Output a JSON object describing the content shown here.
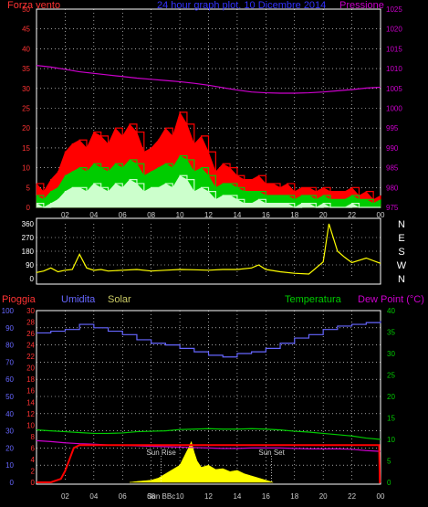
{
  "colors": {
    "wind_gust": "#ff0000",
    "wind_avg": "#00cc00",
    "wind_min": "#ccffcc",
    "pressure": "#cc00cc",
    "direction": "#ffff00",
    "rain": "#ff0000",
    "humidity": "#6666ff",
    "solar": "#ffff00",
    "temperature": "#00cc00",
    "dewpoint": "#cc00cc",
    "axis_left": "#ff3333",
    "axis_right": "#cc00cc",
    "grid": "#ffffff"
  },
  "chart_data": [
    {
      "type": "line",
      "title": "24 hour graph plot. 10 Dicembre 2014",
      "left_label": "Forza vento",
      "right_label": "Pressione",
      "x_ticks": [
        "02",
        "04",
        "06",
        "08",
        "10",
        "12",
        "14",
        "16",
        "18",
        "20",
        "22",
        "00"
      ],
      "y_left": {
        "range": [
          0,
          50
        ],
        "ticks": [
          "0",
          "5",
          "10",
          "15",
          "20",
          "25",
          "30",
          "35",
          "40",
          "45",
          "50"
        ]
      },
      "y_right": {
        "range": [
          975,
          1025
        ],
        "ticks": [
          "975",
          "980",
          "985",
          "990",
          "995",
          "1000",
          "1005",
          "1010",
          "1015",
          "1020",
          "1025"
        ]
      },
      "series": [
        {
          "key": "pressure",
          "axis": "right",
          "x": [
            0,
            1,
            2,
            3,
            4,
            5,
            6,
            7,
            8,
            9,
            10,
            11,
            12,
            13,
            14,
            15,
            16,
            17,
            18,
            19,
            20,
            21,
            22,
            23,
            24
          ],
          "y": [
            1010.8,
            1010.4,
            1009.8,
            1009.2,
            1008.8,
            1008.4,
            1008.0,
            1007.6,
            1007.3,
            1007.0,
            1006.7,
            1006.3,
            1005.8,
            1005.2,
            1004.6,
            1004.1,
            1003.9,
            1003.8,
            1003.8,
            1003.9,
            1004.1,
            1004.4,
            1004.7,
            1005.1,
            1005.3
          ]
        },
        {
          "key": "wind_gust",
          "axis": "left",
          "x": [
            0,
            0.5,
            1,
            1.5,
            2,
            2.5,
            3,
            3.5,
            4,
            4.5,
            5,
            5.5,
            6,
            6.5,
            7,
            7.5,
            8,
            8.5,
            9,
            9.5,
            10,
            10.5,
            11,
            11.5,
            12,
            12.5,
            13,
            13.5,
            14,
            14.5,
            15,
            15.5,
            16,
            16.5,
            17,
            17.5,
            18,
            18.5,
            19,
            19.5,
            20,
            20.5,
            21,
            21.5,
            22,
            22.5,
            23,
            23.5,
            24
          ],
          "y": [
            6,
            4,
            7,
            9,
            14,
            16,
            17,
            15,
            19,
            18,
            16,
            20,
            18,
            21,
            19,
            14,
            15,
            17,
            20,
            18,
            24,
            21,
            16,
            18,
            14,
            9,
            11,
            10,
            8,
            7,
            7,
            8,
            6,
            6,
            5,
            6,
            4,
            5,
            5,
            4,
            5,
            4,
            4,
            4,
            5,
            3,
            4,
            2,
            3
          ]
        },
        {
          "key": "wind_avg",
          "axis": "left",
          "x": [
            0,
            0.5,
            1,
            1.5,
            2,
            2.5,
            3,
            3.5,
            4,
            4.5,
            5,
            5.5,
            6,
            6.5,
            7,
            7.5,
            8,
            8.5,
            9,
            9.5,
            10,
            10.5,
            11,
            11.5,
            12,
            12.5,
            13,
            13.5,
            14,
            14.5,
            15,
            15.5,
            16,
            16.5,
            17,
            17.5,
            18,
            18.5,
            19,
            19.5,
            20,
            20.5,
            21,
            21.5,
            22,
            22.5,
            23,
            23.5,
            24
          ],
          "y": [
            3,
            2,
            4,
            5,
            8,
            9,
            10,
            9,
            11,
            10,
            9,
            11,
            10,
            12,
            11,
            8,
            9,
            10,
            11,
            10,
            13,
            12,
            9,
            10,
            8,
            5,
            6,
            6,
            5,
            4,
            4,
            4,
            3,
            3,
            3,
            3,
            2,
            3,
            3,
            2,
            3,
            2,
            2,
            2,
            3,
            2,
            2,
            1,
            2
          ]
        },
        {
          "key": "wind_min",
          "axis": "left",
          "x": [
            0,
            0.5,
            1,
            1.5,
            2,
            2.5,
            3,
            3.5,
            4,
            4.5,
            5,
            5.5,
            6,
            6.5,
            7,
            7.5,
            8,
            8.5,
            9,
            9.5,
            10,
            10.5,
            11,
            11.5,
            12,
            12.5,
            13,
            13.5,
            14,
            14.5,
            15,
            15.5,
            16,
            16.5,
            17,
            17.5,
            18,
            18.5,
            19,
            19.5,
            20,
            20.5,
            21,
            21.5,
            22,
            22.5,
            23,
            23.5,
            24
          ],
          "y": [
            1,
            0,
            1,
            2,
            4,
            5,
            5,
            4,
            6,
            5,
            4,
            6,
            5,
            7,
            6,
            4,
            5,
            5,
            6,
            5,
            8,
            7,
            4,
            5,
            4,
            2,
            3,
            3,
            2,
            1,
            1,
            2,
            1,
            1,
            1,
            1,
            0,
            1,
            1,
            0,
            1,
            0,
            0,
            0,
            1,
            0,
            0,
            0,
            0
          ]
        }
      ]
    },
    {
      "type": "line",
      "title": "",
      "y_left": {
        "range": [
          0,
          360
        ],
        "ticks": [
          "0",
          "90",
          "180",
          "270",
          "360"
        ]
      },
      "compass": [
        "N",
        "W",
        "S",
        "E",
        "N"
      ],
      "series": [
        {
          "key": "direction",
          "x": [
            0,
            0.5,
            1,
            1.5,
            2,
            2.5,
            3,
            3.5,
            4,
            4.5,
            5,
            6,
            7,
            8,
            9,
            10,
            11,
            12,
            13,
            14,
            15,
            15.5,
            16,
            17,
            18,
            19,
            20,
            20.4,
            21,
            21.5,
            22,
            23,
            24
          ],
          "y": [
            40,
            50,
            70,
            45,
            55,
            60,
            160,
            70,
            55,
            60,
            50,
            55,
            60,
            50,
            55,
            60,
            58,
            55,
            60,
            60,
            70,
            90,
            60,
            45,
            35,
            30,
            110,
            360,
            180,
            140,
            105,
            135,
            100
          ]
        }
      ]
    },
    {
      "type": "line",
      "title": "",
      "labels": [
        "Pioggia",
        "Umidita",
        "Solar",
        "Temperatura",
        "Dew Point (°C)"
      ],
      "x_ticks": [
        "02",
        "04",
        "06",
        "08",
        "10",
        "12",
        "14",
        "16",
        "18",
        "20",
        "22",
        "00"
      ],
      "annotations": [
        "Sun Rise",
        "Sun Set",
        "Sun BBc"
      ],
      "y_rain": {
        "range": [
          0,
          30
        ],
        "ticks": [
          "0",
          "2",
          "4",
          "6",
          "8",
          "10",
          "12",
          "14",
          "16",
          "18",
          "20",
          "22",
          "24",
          "26",
          "28",
          "30"
        ]
      },
      "y_hum": {
        "range": [
          0,
          100
        ],
        "ticks": [
          "0",
          "10",
          "20",
          "30",
          "40",
          "50",
          "60",
          "70",
          "80",
          "90",
          "100"
        ]
      },
      "y_temp": {
        "range": [
          0,
          40
        ],
        "ticks": [
          "0",
          "5",
          "10",
          "15",
          "20",
          "25",
          "30",
          "35",
          "40"
        ]
      },
      "series": [
        {
          "key": "humidity",
          "axis": "hum",
          "x": [
            0,
            1,
            2,
            3,
            4,
            5,
            6,
            7,
            8,
            9,
            10,
            11,
            12,
            13,
            14,
            15,
            16,
            17,
            18,
            19,
            20,
            21,
            22,
            23,
            24
          ],
          "y": [
            87,
            88,
            89,
            92,
            90,
            88,
            86,
            83,
            81,
            80,
            78,
            76,
            74,
            73,
            75,
            76,
            78,
            81,
            84,
            86,
            89,
            91,
            92,
            93,
            94
          ]
        },
        {
          "key": "temperature",
          "axis": "temp",
          "x": [
            0,
            1,
            2,
            3,
            4,
            5,
            6,
            7,
            8,
            9,
            10,
            11,
            12,
            13,
            14,
            15,
            16,
            17,
            18,
            19,
            20,
            21,
            22,
            23,
            24
          ],
          "y": [
            12.2,
            12.0,
            11.8,
            11.6,
            11.4,
            11.4,
            11.5,
            11.8,
            11.9,
            12.0,
            12.3,
            12.4,
            12.5,
            12.4,
            12.4,
            12.5,
            12.4,
            12.2,
            11.9,
            11.7,
            11.4,
            11.1,
            10.8,
            10.3,
            10.0
          ]
        },
        {
          "key": "dewpoint",
          "axis": "temp",
          "x": [
            0,
            1,
            2,
            3,
            4,
            5,
            6,
            7,
            8,
            9,
            10,
            11,
            12,
            13,
            14,
            15,
            16,
            17,
            18,
            19,
            20,
            21,
            22,
            23,
            24
          ],
          "y": [
            9.7,
            9.5,
            9.2,
            9.0,
            8.9,
            8.7,
            8.6,
            8.5,
            8.4,
            8.3,
            8.2,
            8.1,
            8.0,
            7.9,
            7.9,
            8.0,
            8.0,
            8.0,
            7.9,
            7.8,
            7.8,
            7.8,
            7.7,
            7.4,
            7.2
          ]
        },
        {
          "key": "rain",
          "axis": "rain",
          "x": [
            0,
            1,
            1.7,
            2,
            2.3,
            2.6,
            3,
            6,
            10,
            14,
            18,
            22,
            23.9,
            23.95,
            24
          ],
          "y": [
            0,
            0,
            0.6,
            2,
            4,
            6,
            6.5,
            6.5,
            6.5,
            6.5,
            6.5,
            6.5,
            6.5,
            0,
            0
          ]
        },
        {
          "key": "solar",
          "axis": "temp",
          "fill": true,
          "x": [
            6.5,
            7,
            8,
            8.5,
            9,
            9.5,
            10,
            10.3,
            10.6,
            10.8,
            11,
            11.2,
            11.5,
            12,
            12.5,
            13,
            13.5,
            14,
            14.5,
            15,
            15.5,
            16,
            16.5
          ],
          "y": [
            0,
            0.2,
            0.5,
            1,
            2,
            3,
            4,
            6,
            8,
            9.5,
            7,
            5,
            3.5,
            4,
            3,
            3.2,
            2.5,
            2.8,
            2,
            1.5,
            1,
            0.5,
            0
          ]
        }
      ]
    }
  ]
}
